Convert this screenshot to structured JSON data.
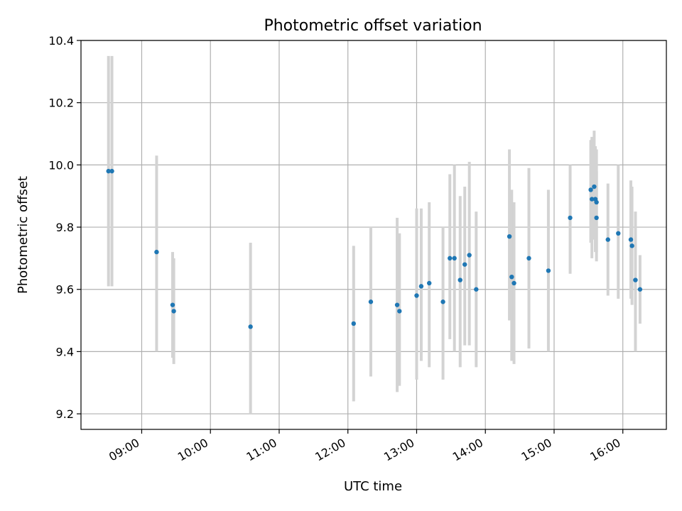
{
  "chart_data": {
    "type": "scatter",
    "title": "Photometric offset variation",
    "xlabel": "UTC time",
    "ylabel": "Photometric offset",
    "xlim": [
      "08:07",
      "16:38"
    ],
    "ylim": [
      9.15,
      10.4
    ],
    "xticks": [
      "09:00",
      "10:00",
      "11:00",
      "12:00",
      "13:00",
      "14:00",
      "15:00",
      "16:00"
    ],
    "yticks": [
      "9.2",
      "9.4",
      "9.6",
      "9.8",
      "10.0",
      "10.2",
      "10.4"
    ],
    "grid": true,
    "colors": {
      "point": "#1f77b4",
      "errorbar": "#d3d3d3"
    },
    "points": [
      {
        "t": "08:31",
        "y": 9.98,
        "lo": 9.61,
        "hi": 10.35
      },
      {
        "t": "08:34",
        "y": 9.98,
        "lo": 9.61,
        "hi": 10.35
      },
      {
        "t": "09:13",
        "y": 9.72,
        "lo": 9.4,
        "hi": 10.03
      },
      {
        "t": "09:27",
        "y": 9.55,
        "lo": 9.38,
        "hi": 9.72
      },
      {
        "t": "09:28",
        "y": 9.53,
        "lo": 9.36,
        "hi": 9.7
      },
      {
        "t": "10:35",
        "y": 9.48,
        "lo": 9.2,
        "hi": 9.75
      },
      {
        "t": "12:05",
        "y": 9.49,
        "lo": 9.24,
        "hi": 9.74
      },
      {
        "t": "12:20",
        "y": 9.56,
        "lo": 9.32,
        "hi": 9.8
      },
      {
        "t": "12:43",
        "y": 9.55,
        "lo": 9.27,
        "hi": 9.83
      },
      {
        "t": "12:45",
        "y": 9.53,
        "lo": 9.29,
        "hi": 9.78
      },
      {
        "t": "13:00",
        "y": 9.58,
        "lo": 9.31,
        "hi": 9.86
      },
      {
        "t": "13:04",
        "y": 9.61,
        "lo": 9.37,
        "hi": 9.86
      },
      {
        "t": "13:11",
        "y": 9.62,
        "lo": 9.35,
        "hi": 9.88
      },
      {
        "t": "13:23",
        "y": 9.56,
        "lo": 9.31,
        "hi": 9.8
      },
      {
        "t": "13:29",
        "y": 9.7,
        "lo": 9.44,
        "hi": 9.97
      },
      {
        "t": "13:33",
        "y": 9.7,
        "lo": 9.4,
        "hi": 10.0
      },
      {
        "t": "13:38",
        "y": 9.63,
        "lo": 9.35,
        "hi": 9.9
      },
      {
        "t": "13:42",
        "y": 9.68,
        "lo": 9.42,
        "hi": 9.93
      },
      {
        "t": "13:46",
        "y": 9.71,
        "lo": 9.42,
        "hi": 10.01
      },
      {
        "t": "13:52",
        "y": 9.6,
        "lo": 9.35,
        "hi": 9.85
      },
      {
        "t": "14:21",
        "y": 9.77,
        "lo": 9.5,
        "hi": 10.05
      },
      {
        "t": "14:23",
        "y": 9.64,
        "lo": 9.37,
        "hi": 9.92
      },
      {
        "t": "14:25",
        "y": 9.62,
        "lo": 9.36,
        "hi": 9.88
      },
      {
        "t": "14:38",
        "y": 9.7,
        "lo": 9.41,
        "hi": 9.99
      },
      {
        "t": "14:55",
        "y": 9.66,
        "lo": 9.4,
        "hi": 9.92
      },
      {
        "t": "15:14",
        "y": 9.83,
        "lo": 9.65,
        "hi": 10.0
      },
      {
        "t": "15:32",
        "y": 9.92,
        "lo": 9.75,
        "hi": 10.08
      },
      {
        "t": "15:33",
        "y": 9.89,
        "lo": 9.7,
        "hi": 10.09
      },
      {
        "t": "15:35",
        "y": 9.93,
        "lo": 9.76,
        "hi": 10.11
      },
      {
        "t": "15:36",
        "y": 9.89,
        "lo": 9.72,
        "hi": 10.06
      },
      {
        "t": "15:37",
        "y": 9.88,
        "lo": 9.72,
        "hi": 10.05
      },
      {
        "t": "15:37",
        "y": 9.83,
        "lo": 9.69,
        "hi": 9.98
      },
      {
        "t": "15:47",
        "y": 9.76,
        "lo": 9.58,
        "hi": 9.94
      },
      {
        "t": "15:56",
        "y": 9.78,
        "lo": 9.57,
        "hi": 10.0
      },
      {
        "t": "16:07",
        "y": 9.76,
        "lo": 9.57,
        "hi": 9.95
      },
      {
        "t": "16:08",
        "y": 9.74,
        "lo": 9.55,
        "hi": 9.93
      },
      {
        "t": "16:11",
        "y": 9.63,
        "lo": 9.4,
        "hi": 9.85
      },
      {
        "t": "16:15",
        "y": 9.6,
        "lo": 9.49,
        "hi": 9.71
      }
    ]
  }
}
